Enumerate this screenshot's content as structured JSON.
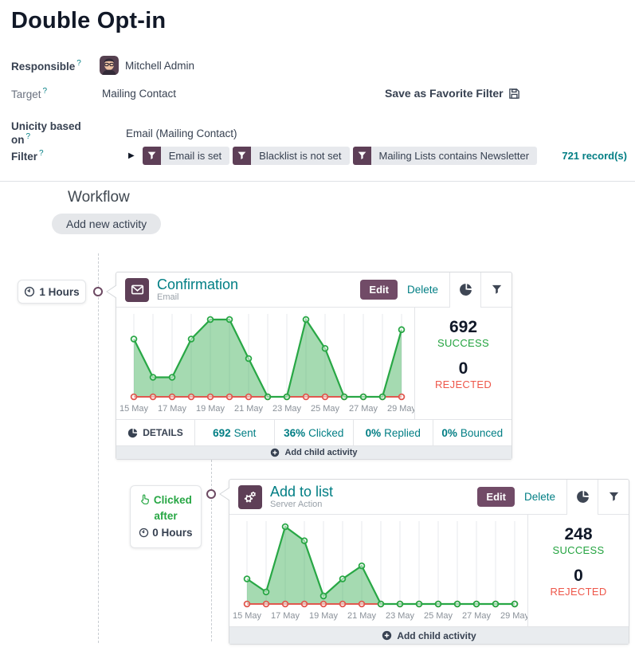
{
  "ui": {
    "help_mark": "?",
    "caret_icon": "▶"
  },
  "header": {
    "title": "Double Opt-in",
    "save_favorite_label": "Save as Favorite Filter",
    "fields": {
      "responsible": {
        "label": "Responsible",
        "value": "Mitchell Admin"
      },
      "target": {
        "label": "Target",
        "value": "Mailing Contact"
      },
      "unicity": {
        "label": "Unicity based on",
        "value": "Email (Mailing Contact)"
      },
      "filter": {
        "label": "Filter",
        "chips": [
          {
            "label": "Email is set"
          },
          {
            "label": "Blacklist is not set"
          },
          {
            "label": "Mailing Lists contains Newsletter"
          }
        ],
        "record_count": "721 record(s)"
      }
    }
  },
  "workflow": {
    "title": "Workflow",
    "add_new_activity": "Add new activity",
    "add_child_activity": "Add child activity"
  },
  "colors": {
    "accent_teal": "#017e84",
    "brand_purple": "#714b67",
    "icon_plum": "#5e3f57",
    "success_green": "#28a745",
    "rejected_red": "#e0584f"
  },
  "activities": [
    {
      "trigger_delay": "1 Hours",
      "title": "Confirmation",
      "type_label": "Email",
      "edit_label": "Edit",
      "delete_label": "Delete",
      "success_value": "692",
      "success_label": "SUCCESS",
      "rejected_value": "0",
      "rejected_label": "REJECTED",
      "details_label": "DETAILS",
      "kpis": [
        {
          "value": "692",
          "label": "Sent"
        },
        {
          "value": "36%",
          "label": "Clicked"
        },
        {
          "value": "0%",
          "label": "Replied"
        },
        {
          "value": "0%",
          "label": "Bounced"
        }
      ],
      "chart_data": {
        "type": "area",
        "title": "Confirmation email success vs rejected per day",
        "categories": [
          "15 May",
          "16 May",
          "17 May",
          "18 May",
          "19 May",
          "20 May",
          "21 May",
          "22 May",
          "23 May",
          "24 May",
          "25 May",
          "26 May",
          "27 May",
          "28 May",
          "29 May"
        ],
        "tick_labels": [
          "15 May",
          "17 May",
          "19 May",
          "21 May",
          "23 May",
          "25 May",
          "27 May",
          "29 May"
        ],
        "series": [
          {
            "name": "Success",
            "color": "#28a745",
            "values": [
              74,
              25,
              25,
              74,
              99,
              99,
              49,
              0,
              0,
              99,
              62,
              0,
              0,
              0,
              86
            ]
          },
          {
            "name": "Rejected",
            "color": "#e0584f",
            "values": [
              0,
              0,
              0,
              0,
              0,
              0,
              0,
              0,
              0,
              0,
              0,
              0,
              0,
              0,
              0
            ]
          }
        ],
        "ylim": [
          0,
          105
        ],
        "grid": true,
        "legend_position": "none"
      }
    },
    {
      "trigger_condition": "Clicked after",
      "trigger_delay": "0 Hours",
      "title": "Add to list",
      "type_label": "Server Action",
      "edit_label": "Edit",
      "delete_label": "Delete",
      "success_value": "248",
      "success_label": "SUCCESS",
      "rejected_value": "0",
      "rejected_label": "REJECTED",
      "chart_data": {
        "type": "area",
        "title": "Add to list success vs rejected per day",
        "categories": [
          "15 May",
          "16 May",
          "17 May",
          "18 May",
          "19 May",
          "20 May",
          "21 May",
          "22 May",
          "23 May",
          "24 May",
          "25 May",
          "26 May",
          "27 May",
          "28 May",
          "29 May"
        ],
        "tick_labels": [
          "15 May",
          "17 May",
          "19 May",
          "21 May",
          "23 May",
          "25 May",
          "27 May",
          "29 May"
        ],
        "series": [
          {
            "name": "Success",
            "color": "#28a745",
            "values": [
              25,
              12,
              77,
              63,
              8,
              25,
              38,
              0,
              0,
              0,
              0,
              0,
              0,
              0,
              0
            ]
          },
          {
            "name": "Rejected",
            "color": "#e0584f",
            "values": [
              0,
              0,
              0,
              0,
              0,
              0,
              0,
              0,
              0,
              0,
              0,
              0,
              0,
              0,
              0
            ]
          }
        ],
        "ylim": [
          0,
          80
        ],
        "grid": true,
        "legend_position": "none"
      }
    }
  ]
}
